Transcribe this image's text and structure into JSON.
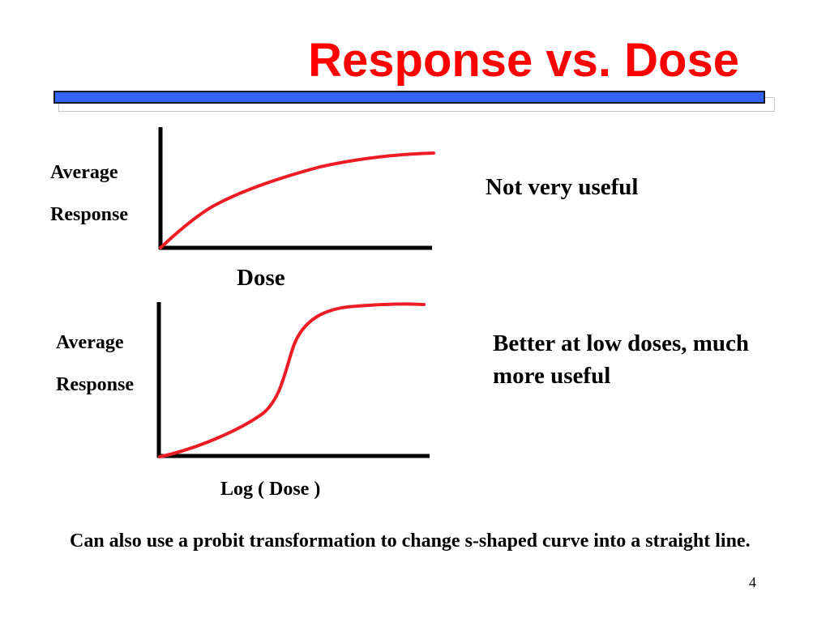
{
  "slide": {
    "title": "Response vs. Dose",
    "page_number": "4",
    "footer_note": "Can also use a probit transformation to change s-shaped curve into a straight line.",
    "accent_color": "#ff0000",
    "bar_color": "#3366ff"
  },
  "diagrams": [
    {
      "ylabel_line1": "Average",
      "ylabel_line2": "Response",
      "xlabel": "Dose",
      "comment": "Not very useful",
      "curve_shape": "concave-saturating",
      "curve_color": "#ee1c25"
    },
    {
      "ylabel_line1": "Average",
      "ylabel_line2": "Response",
      "xlabel": "Log ( Dose )",
      "comment": "Better at low doses, much more useful",
      "curve_shape": "sigmoid",
      "curve_color": "#ee1c25"
    }
  ]
}
